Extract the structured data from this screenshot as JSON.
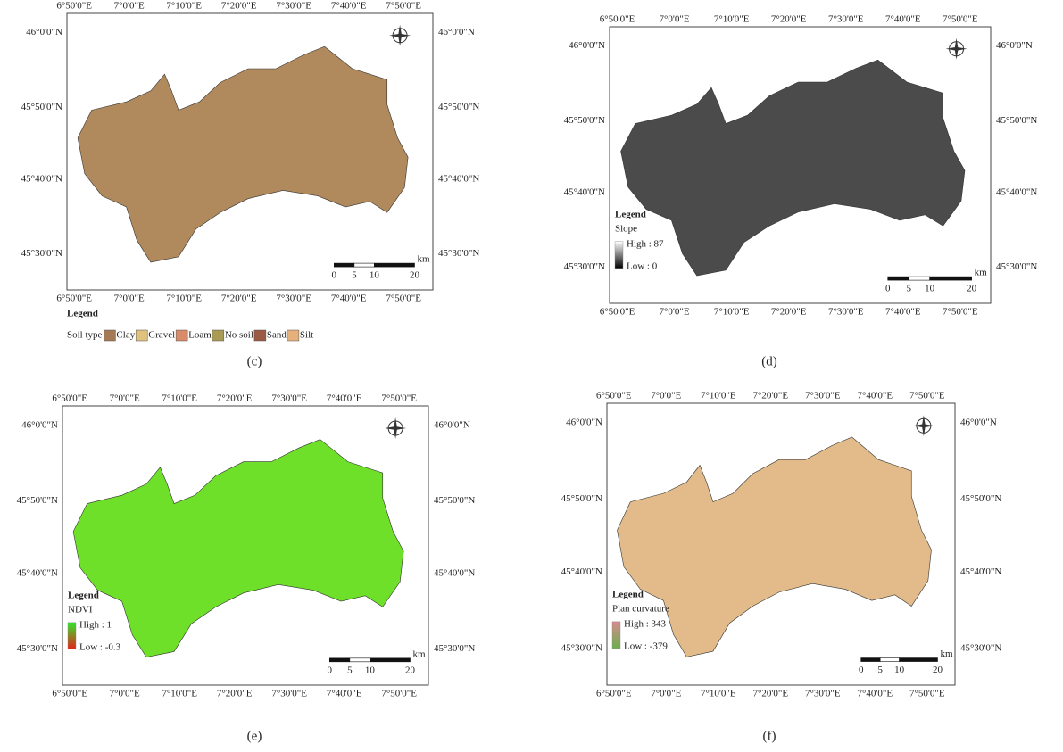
{
  "lon_labels": [
    "6°50'0\"E",
    "7°0'0\"E",
    "7°10'0\"E",
    "7°20'0\"E",
    "7°30'0\"E",
    "7°40'0\"E",
    "7°50'0\"E"
  ],
  "lat_labels": [
    "46°0'0\"N",
    "45°50'0\"N",
    "45°40'0\"N",
    "45°30'0\"N"
  ],
  "scale_ticks": [
    0,
    5,
    10,
    20
  ],
  "scale_unit": "km",
  "panels": [
    {
      "caption": "(c)",
      "map_fill": "#b08a5c",
      "legend": {
        "title": "Legend",
        "label": "Soil type",
        "items": [
          {
            "name": "Clay",
            "color": "#a47a55"
          },
          {
            "name": "Gravel",
            "color": "#e0c27e"
          },
          {
            "name": "Loam",
            "color": "#d98a68"
          },
          {
            "name": "No soil",
            "color": "#a99a55"
          },
          {
            "name": "Sand",
            "color": "#9b5a44"
          },
          {
            "name": "Silt",
            "color": "#e6b07a"
          }
        ]
      }
    },
    {
      "caption": "(d)",
      "map_fill": "#4b4b4b",
      "legend": {
        "title": "Legend",
        "label": "Slope",
        "high": "High : 87",
        "low": "Low : 0",
        "colors": [
          "#ffffff",
          "#000000"
        ]
      }
    },
    {
      "caption": "(e)",
      "map_fill": "#6ee02a",
      "legend": {
        "title": "Legend",
        "label": "NDVI",
        "high": "High : 1",
        "low": "Low : -0.3",
        "colors": [
          "#2ee82a",
          "#e8201a"
        ]
      }
    },
    {
      "caption": "(f)",
      "map_fill": "#e3bb8b",
      "legend": {
        "title": "Legend",
        "label": "Plan curvature",
        "high": "High : 343",
        "low": "Low : -379",
        "colors": [
          "#d98a90",
          "#6ab04a"
        ]
      }
    }
  ]
}
